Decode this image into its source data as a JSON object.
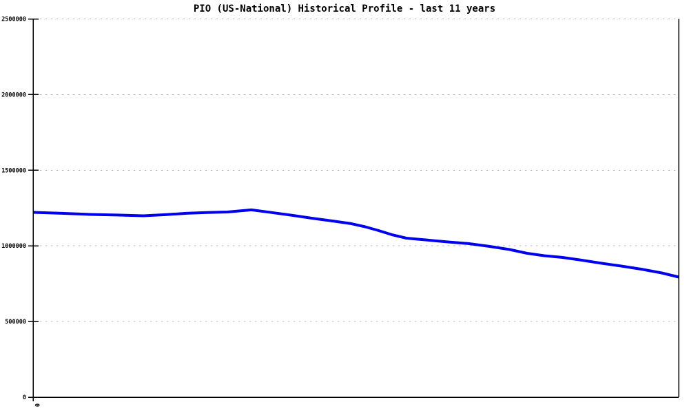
{
  "page": {
    "background": "#ffffff"
  },
  "chart_data": {
    "type": "line",
    "title": "PIO (US-National) Historical Profile - last 11 years",
    "xlabel": "",
    "ylabel": "",
    "xlim": [
      0,
      11
    ],
    "ylim": [
      0,
      2500000
    ],
    "y_ticks": [
      0,
      500000,
      1000000,
      1500000,
      2000000,
      2500000
    ],
    "y_tick_labels": [
      "0",
      "500000",
      "1000000",
      "1500000",
      "2000000",
      "2500000"
    ],
    "x_tick_positions": [
      0
    ],
    "x_tick_labels": [
      "0"
    ],
    "x_tick_label_rotation_deg": 90,
    "grid": "horizontal-dashed",
    "legend_position": "none",
    "axis_color": "#000000",
    "grid_color": "#b4b4b4",
    "series": [
      {
        "name": "PIO (US-National)",
        "color": "#0000ee",
        "line_width": 4,
        "x": [
          0,
          0.49,
          0.96,
          1.43,
          1.88,
          2.25,
          2.61,
          2.96,
          3.31,
          3.72,
          4.07,
          4.43,
          4.78,
          5.13,
          5.42,
          5.66,
          5.89,
          6.11,
          6.36,
          6.72,
          7.07,
          7.42,
          7.77,
          8.12,
          8.42,
          8.71,
          9.01,
          9.3,
          9.65,
          10.01,
          10.36,
          10.71,
          11.0
        ],
        "values": [
          1221500,
          1215000,
          1208000,
          1204000,
          1199000,
          1206000,
          1215000,
          1220000,
          1224000,
          1238000,
          1220000,
          1201000,
          1181000,
          1163000,
          1147000,
          1126000,
          1101000,
          1074000,
          1051000,
          1038000,
          1026000,
          1015000,
          997000,
          976000,
          951000,
          935000,
          924000,
          908000,
          887000,
          867000,
          846000,
          821000,
          794000
        ]
      }
    ]
  }
}
